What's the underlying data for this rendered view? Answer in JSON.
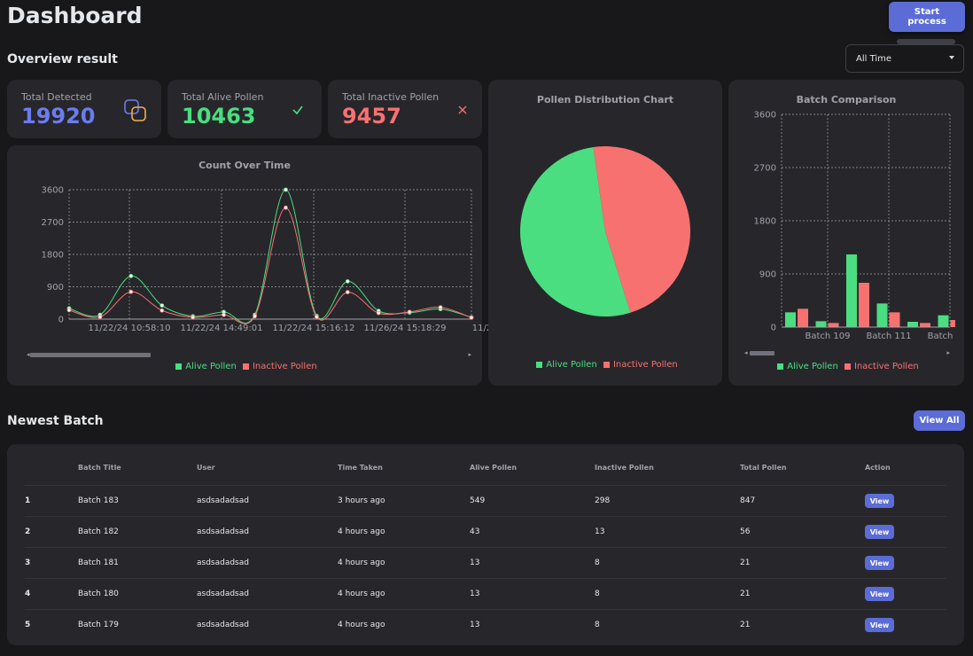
{
  "header": {
    "title": "Dashboard",
    "start_label": "Start process"
  },
  "overview": {
    "title": "Overview result",
    "filter_value": "All Time"
  },
  "stats": {
    "detected": {
      "label": "Total Detected",
      "value": "19920"
    },
    "alive": {
      "label": "Total Alive Pollen",
      "value": "10463"
    },
    "inactive": {
      "label": "Total Inactive Pollen",
      "value": "9457"
    }
  },
  "colors": {
    "alive": "#4ade80",
    "inactive": "#f87171",
    "accent": "#5b6cd6",
    "detected": "#6b7cf0"
  },
  "chart_data": [
    {
      "type": "line",
      "title": "Count Over Time",
      "x_tick_labels": [
        "11/22/24 10:58:10",
        "11/22/24 14:49:01",
        "11/22/24 15:16:12",
        "11/26/24 15:18:29",
        "11/2"
      ],
      "y_ticks": [
        0,
        900,
        1800,
        2700,
        3600
      ],
      "ylim": [
        0,
        3600
      ],
      "series": [
        {
          "name": "Alive Pollen",
          "values": [
            300,
            120,
            1200,
            380,
            80,
            200,
            120,
            3600,
            90,
            1050,
            230,
            180,
            280,
            50
          ]
        },
        {
          "name": "Inactive Pollen",
          "values": [
            250,
            60,
            760,
            240,
            50,
            120,
            80,
            3100,
            60,
            750,
            170,
            200,
            330,
            40
          ]
        }
      ],
      "grid": true,
      "legend": "bottom"
    },
    {
      "type": "pie",
      "title": "Pollen Distribution Chart",
      "labels": [
        "Alive Pollen",
        "Inactive Pollen"
      ],
      "values": [
        10463,
        9457
      ],
      "legend": "bottom"
    },
    {
      "type": "bar",
      "title": "Batch Comparison",
      "x_tick_labels": [
        "Batch 109",
        "Batch 111",
        "Batch"
      ],
      "y_ticks": [
        0,
        900,
        1800,
        2700,
        3600
      ],
      "ylim": [
        0,
        3600
      ],
      "series": [
        {
          "name": "Alive Pollen",
          "values": [
            250,
            100,
            1230,
            400,
            90,
            200
          ]
        },
        {
          "name": "Inactive Pollen",
          "values": [
            310,
            70,
            750,
            250,
            70,
            120
          ]
        }
      ],
      "grid": true,
      "legend": "bottom"
    }
  ],
  "newest": {
    "title": "Newest Batch",
    "view_all_label": "View All",
    "columns": [
      "",
      "Batch Title",
      "User",
      "Time Taken",
      "Alive Pollen",
      "Inactive Pollen",
      "Total Pollen",
      "Action"
    ],
    "rows": [
      {
        "idx": "1",
        "title": "Batch 183",
        "user": "asdsadadsad",
        "time": "3 hours ago",
        "alive": "549",
        "inactive": "298",
        "total": "847",
        "action": "View"
      },
      {
        "idx": "2",
        "title": "Batch 182",
        "user": "asdsadadsad",
        "time": "4 hours ago",
        "alive": "43",
        "inactive": "13",
        "total": "56",
        "action": "View"
      },
      {
        "idx": "3",
        "title": "Batch 181",
        "user": "asdsadadsad",
        "time": "4 hours ago",
        "alive": "13",
        "inactive": "8",
        "total": "21",
        "action": "View"
      },
      {
        "idx": "4",
        "title": "Batch 180",
        "user": "asdsadadsad",
        "time": "4 hours ago",
        "alive": "13",
        "inactive": "8",
        "total": "21",
        "action": "View"
      },
      {
        "idx": "5",
        "title": "Batch 179",
        "user": "asdsadadsad",
        "time": "4 hours ago",
        "alive": "13",
        "inactive": "8",
        "total": "21",
        "action": "View"
      }
    ]
  }
}
